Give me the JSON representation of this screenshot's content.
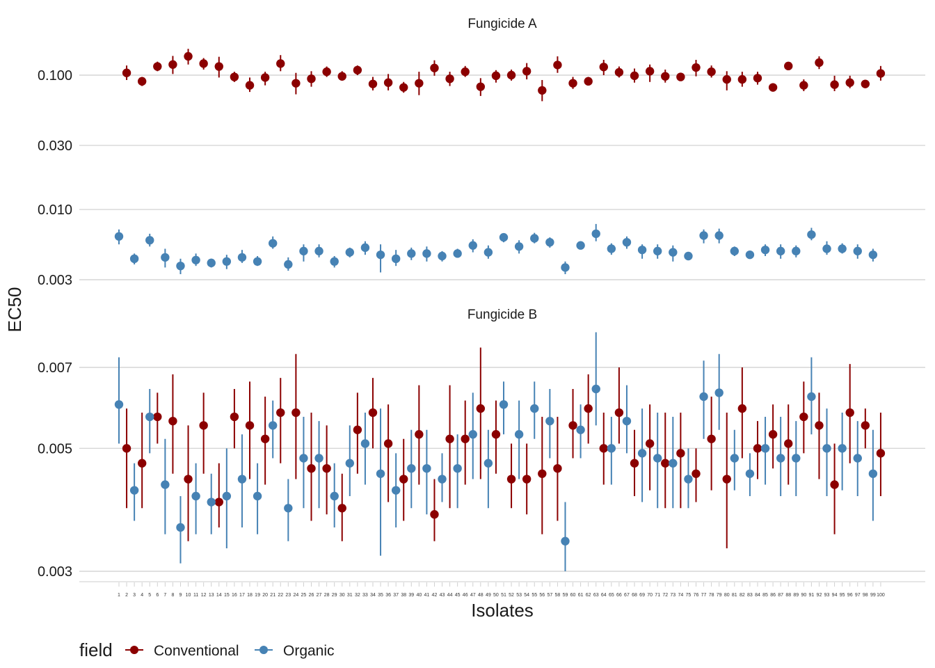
{
  "chart_data": {
    "type": "scatter",
    "subtype": "point-range (estimate with interval), faceted",
    "ylabel": "EC50",
    "xlabel": "Isolates",
    "y_scale": "log10",
    "grid": "horizontal major gridlines only",
    "legend": {
      "placement": "bottom-left",
      "title": "field",
      "entries": [
        {
          "name": "Conventional",
          "color": "#8B0000"
        },
        {
          "name": "Organic",
          "color": "#4682B4"
        }
      ]
    },
    "x_categories": [
      "1",
      "2",
      "3",
      "4",
      "5",
      "6",
      "7",
      "8",
      "9",
      "10",
      "11",
      "12",
      "13",
      "14",
      "15",
      "16",
      "17",
      "18",
      "19",
      "20",
      "21",
      "22",
      "23",
      "24",
      "25",
      "26",
      "27",
      "28",
      "29",
      "30",
      "31",
      "32",
      "33",
      "34",
      "35",
      "36",
      "37",
      "38",
      "39",
      "40",
      "41",
      "42",
      "43",
      "44",
      "45",
      "46",
      "47",
      "48",
      "49",
      "50",
      "51",
      "52",
      "53",
      "54",
      "55",
      "56",
      "57",
      "58",
      "59",
      "60",
      "61",
      "62",
      "63",
      "64",
      "65",
      "66",
      "67",
      "68",
      "69",
      "70",
      "71",
      "72",
      "73",
      "74",
      "75",
      "76",
      "77",
      "78",
      "79",
      "80",
      "81",
      "82",
      "83",
      "84",
      "85",
      "86",
      "87",
      "88",
      "89",
      "90",
      "91",
      "92",
      "93",
      "94",
      "95",
      "96",
      "97",
      "98",
      "99",
      "100"
    ],
    "facets": [
      {
        "title": "Fungicide A",
        "yticks": [
          "0.100",
          "0.030",
          "0.010",
          "0.003"
        ],
        "ylim": [
          0.0027,
          0.18
        ],
        "conventional": {
          "isolates": [
            2,
            4,
            6,
            8,
            10,
            12,
            14,
            16,
            18,
            20,
            22,
            24,
            26,
            28,
            30,
            32,
            34,
            36,
            38,
            40,
            42,
            44,
            46,
            48,
            50,
            52,
            54,
            56,
            58,
            60,
            62,
            64,
            66,
            68,
            70,
            72,
            74,
            76,
            78,
            80,
            82,
            84,
            86,
            88,
            90,
            92,
            94,
            96,
            98,
            100
          ],
          "values": [
            0.104,
            0.09,
            0.116,
            0.12,
            0.138,
            0.122,
            0.116,
            0.097,
            0.084,
            0.096,
            0.122,
            0.087,
            0.094,
            0.106,
            0.098,
            0.109,
            0.086,
            0.088,
            0.081,
            0.087,
            0.113,
            0.094,
            0.106,
            0.082,
            0.099,
            0.1,
            0.107,
            0.077,
            0.119,
            0.087,
            0.09,
            0.115,
            0.105,
            0.099,
            0.107,
            0.098,
            0.097,
            0.114,
            0.106,
            0.093,
            0.093,
            0.095,
            0.081,
            0.117,
            0.084,
            0.124,
            0.085,
            0.088,
            0.086,
            0.103
          ],
          "lower": [
            0.092,
            0.083,
            0.107,
            0.102,
            0.12,
            0.11,
            0.096,
            0.089,
            0.075,
            0.084,
            0.107,
            0.072,
            0.082,
            0.097,
            0.091,
            0.1,
            0.077,
            0.077,
            0.074,
            0.071,
            0.099,
            0.083,
            0.097,
            0.07,
            0.088,
            0.091,
            0.093,
            0.064,
            0.104,
            0.079,
            0.085,
            0.1,
            0.096,
            0.088,
            0.089,
            0.088,
            0.093,
            0.098,
            0.096,
            0.077,
            0.082,
            0.085,
            0.076,
            0.11,
            0.076,
            0.111,
            0.076,
            0.08,
            0.082,
            0.091
          ],
          "upper": [
            0.118,
            0.097,
            0.126,
            0.139,
            0.157,
            0.134,
            0.137,
            0.106,
            0.096,
            0.106,
            0.141,
            0.104,
            0.107,
            0.116,
            0.107,
            0.118,
            0.097,
            0.102,
            0.089,
            0.106,
            0.129,
            0.106,
            0.117,
            0.095,
            0.109,
            0.11,
            0.123,
            0.092,
            0.138,
            0.097,
            0.097,
            0.13,
            0.116,
            0.112,
            0.12,
            0.11,
            0.101,
            0.13,
            0.118,
            0.107,
            0.106,
            0.106,
            0.087,
            0.124,
            0.093,
            0.138,
            0.099,
            0.099,
            0.091,
            0.117
          ]
        },
        "organic": {
          "isolates": [
            1,
            3,
            5,
            7,
            9,
            11,
            13,
            15,
            17,
            19,
            21,
            23,
            25,
            27,
            29,
            31,
            33,
            35,
            37,
            39,
            41,
            43,
            45,
            47,
            49,
            51,
            53,
            55,
            57,
            59,
            61,
            63,
            65,
            67,
            69,
            71,
            73,
            75,
            77,
            79,
            81,
            83,
            85,
            87,
            89,
            91,
            93,
            95,
            97,
            99
          ],
          "values": [
            0.0063,
            0.0043,
            0.0059,
            0.0044,
            0.0038,
            0.0042,
            0.004,
            0.0041,
            0.0044,
            0.0041,
            0.0056,
            0.0039,
            0.0049,
            0.0049,
            0.0041,
            0.0048,
            0.0052,
            0.0046,
            0.0043,
            0.0047,
            0.0047,
            0.0045,
            0.0047,
            0.0054,
            0.0048,
            0.0062,
            0.0053,
            0.0061,
            0.0057,
            0.0037,
            0.0054,
            0.0066,
            0.0051,
            0.0057,
            0.005,
            0.0049,
            0.0048,
            0.0045,
            0.0064,
            0.0064,
            0.0049,
            0.0046,
            0.005,
            0.0049,
            0.0049,
            0.0065,
            0.0051,
            0.0051,
            0.0049,
            0.0046
          ],
          "lower": [
            0.0055,
            0.0039,
            0.0053,
            0.0037,
            0.0033,
            0.0038,
            0.0037,
            0.0036,
            0.004,
            0.0038,
            0.0051,
            0.0035,
            0.0041,
            0.0044,
            0.0037,
            0.0044,
            0.0046,
            0.0034,
            0.0038,
            0.0042,
            0.0041,
            0.0041,
            0.0044,
            0.0048,
            0.0043,
            0.0057,
            0.0047,
            0.0056,
            0.0052,
            0.0033,
            0.0051,
            0.0058,
            0.0046,
            0.0051,
            0.0043,
            0.0043,
            0.0041,
            0.0042,
            0.0056,
            0.0056,
            0.0045,
            0.0044,
            0.0045,
            0.0043,
            0.0044,
            0.0059,
            0.0046,
            0.0047,
            0.0043,
            0.0041
          ],
          "upper": [
            0.0071,
            0.0047,
            0.0066,
            0.0051,
            0.0043,
            0.0047,
            0.0043,
            0.0046,
            0.005,
            0.0045,
            0.0063,
            0.0044,
            0.0055,
            0.0055,
            0.0045,
            0.0052,
            0.0058,
            0.0055,
            0.005,
            0.0052,
            0.0053,
            0.0049,
            0.0051,
            0.006,
            0.0054,
            0.0066,
            0.0059,
            0.0067,
            0.0062,
            0.0041,
            0.0058,
            0.0078,
            0.0056,
            0.0063,
            0.0055,
            0.0055,
            0.0054,
            0.0048,
            0.0071,
            0.0072,
            0.0053,
            0.0048,
            0.0055,
            0.0055,
            0.0054,
            0.0073,
            0.0058,
            0.0056,
            0.0055,
            0.0051
          ]
        }
      },
      {
        "title": "Fungicide B",
        "yticks": [
          "0.007",
          "0.005",
          "0.003"
        ],
        "ylim": [
          0.00293,
          0.0088
        ],
        "conventional": {
          "isolates": [
            2,
            4,
            6,
            8,
            10,
            12,
            14,
            16,
            18,
            20,
            22,
            24,
            26,
            28,
            30,
            32,
            34,
            36,
            38,
            40,
            42,
            44,
            46,
            48,
            50,
            52,
            54,
            56,
            58,
            60,
            62,
            64,
            66,
            68,
            70,
            72,
            74,
            76,
            78,
            80,
            82,
            84,
            86,
            88,
            90,
            92,
            94,
            96,
            98,
            100
          ],
          "values": [
            0.005,
            0.0047,
            0.0057,
            0.0056,
            0.0044,
            0.0055,
            0.004,
            0.0057,
            0.0055,
            0.0052,
            0.0058,
            0.0058,
            0.0046,
            0.0046,
            0.0039,
            0.0054,
            0.0058,
            0.0051,
            0.0044,
            0.0053,
            0.0038,
            0.0052,
            0.0052,
            0.0059,
            0.0053,
            0.0044,
            0.0044,
            0.0045,
            0.0046,
            0.0055,
            0.0059,
            0.005,
            0.0058,
            0.0047,
            0.0051,
            0.0047,
            0.0049,
            0.0045,
            0.0052,
            0.0044,
            0.0059,
            0.005,
            0.0053,
            0.0051,
            0.0057,
            0.0055,
            0.0043,
            0.0058,
            0.0055,
            0.0049
          ],
          "lower": [
            0.0039,
            0.0039,
            0.0051,
            0.0045,
            0.0034,
            0.0045,
            0.0036,
            0.005,
            0.0044,
            0.0043,
            0.0047,
            0.0044,
            0.0037,
            0.0038,
            0.0034,
            0.0045,
            0.005,
            0.004,
            0.0037,
            0.0043,
            0.0034,
            0.0039,
            0.0043,
            0.0044,
            0.0045,
            0.0039,
            0.0038,
            0.0035,
            0.0037,
            0.0048,
            0.0051,
            0.0043,
            0.0051,
            0.0041,
            0.0042,
            0.0039,
            0.0039,
            0.004,
            0.0042,
            0.0033,
            0.0048,
            0.0044,
            0.0046,
            0.0043,
            0.0049,
            0.0044,
            0.0035,
            0.0047,
            0.005,
            0.0041
          ],
          "upper": [
            0.0059,
            0.0058,
            0.0063,
            0.0068,
            0.0055,
            0.0063,
            0.0047,
            0.0064,
            0.0066,
            0.0062,
            0.0067,
            0.0074,
            0.0058,
            0.0055,
            0.0045,
            0.0063,
            0.0067,
            0.006,
            0.0052,
            0.0065,
            0.0044,
            0.0065,
            0.0061,
            0.0076,
            0.0061,
            0.0051,
            0.0051,
            0.0057,
            0.0057,
            0.0064,
            0.0068,
            0.0058,
            0.007,
            0.0054,
            0.006,
            0.0058,
            0.0058,
            0.005,
            0.0062,
            0.0058,
            0.007,
            0.0056,
            0.006,
            0.006,
            0.0066,
            0.0063,
            0.0051,
            0.0071,
            0.0059,
            0.0058
          ]
        },
        "organic": {
          "isolates": [
            1,
            3,
            5,
            7,
            9,
            11,
            13,
            15,
            17,
            19,
            21,
            23,
            25,
            27,
            29,
            31,
            33,
            35,
            37,
            39,
            41,
            43,
            45,
            47,
            49,
            51,
            53,
            55,
            57,
            59,
            61,
            63,
            65,
            67,
            69,
            71,
            73,
            75,
            77,
            79,
            81,
            83,
            85,
            87,
            89,
            91,
            93,
            95,
            97,
            99
          ],
          "values": [
            0.006,
            0.0042,
            0.0057,
            0.0043,
            0.0036,
            0.0041,
            0.004,
            0.0041,
            0.0044,
            0.0041,
            0.0055,
            0.0039,
            0.0048,
            0.0048,
            0.0041,
            0.0047,
            0.0051,
            0.0045,
            0.0042,
            0.0046,
            0.0046,
            0.0044,
            0.0046,
            0.0053,
            0.0047,
            0.006,
            0.0053,
            0.0059,
            0.0056,
            0.0034,
            0.0054,
            0.0064,
            0.005,
            0.0056,
            0.0049,
            0.0048,
            0.0047,
            0.0044,
            0.0062,
            0.0063,
            0.0048,
            0.0045,
            0.005,
            0.0048,
            0.0048,
            0.0062,
            0.005,
            0.005,
            0.0048,
            0.0045
          ],
          "lower": [
            0.0051,
            0.0037,
            0.0049,
            0.0035,
            0.0031,
            0.0035,
            0.0035,
            0.0033,
            0.0036,
            0.0035,
            0.0048,
            0.0034,
            0.0039,
            0.0039,
            0.0036,
            0.0041,
            0.0043,
            0.0032,
            0.0036,
            0.0039,
            0.0038,
            0.004,
            0.0039,
            0.0044,
            0.0039,
            0.0053,
            0.0044,
            0.0052,
            0.0048,
            0.003,
            0.0048,
            0.0055,
            0.0043,
            0.0049,
            0.004,
            0.0039,
            0.0039,
            0.0039,
            0.0052,
            0.0054,
            0.0042,
            0.0041,
            0.0043,
            0.0041,
            0.0041,
            0.0053,
            0.0041,
            0.0042,
            0.0041,
            0.0037
          ],
          "upper": [
            0.0073,
            0.0047,
            0.0064,
            0.0052,
            0.0041,
            0.0047,
            0.0045,
            0.005,
            0.0053,
            0.0047,
            0.0061,
            0.0044,
            0.0057,
            0.0056,
            0.0047,
            0.0055,
            0.0058,
            0.0059,
            0.0049,
            0.0054,
            0.0054,
            0.0049,
            0.0053,
            0.0063,
            0.0054,
            0.0066,
            0.0061,
            0.0066,
            0.0064,
            0.004,
            0.006,
            0.0081,
            0.0057,
            0.0065,
            0.0059,
            0.0058,
            0.0057,
            0.005,
            0.0072,
            0.0074,
            0.0054,
            0.0049,
            0.0057,
            0.0057,
            0.0056,
            0.0073,
            0.0059,
            0.0058,
            0.0056,
            0.0054
          ]
        }
      }
    ]
  }
}
